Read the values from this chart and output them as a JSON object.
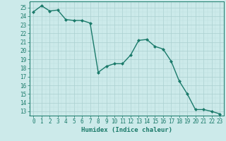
{
  "x": [
    0,
    1,
    2,
    3,
    4,
    5,
    6,
    7,
    8,
    9,
    10,
    11,
    12,
    13,
    14,
    15,
    16,
    17,
    18,
    19,
    20,
    21,
    22,
    23
  ],
  "y": [
    24.5,
    25.2,
    24.6,
    24.7,
    23.6,
    23.5,
    23.5,
    23.2,
    17.5,
    18.2,
    18.5,
    18.5,
    19.5,
    21.2,
    21.3,
    20.5,
    20.2,
    18.8,
    16.5,
    15.0,
    13.2,
    13.2,
    13.0,
    12.7
  ],
  "line_color": "#1a7a6a",
  "marker": "D",
  "marker_size": 2.0,
  "linewidth": 1.0,
  "bg_color": "#cceaea",
  "grid_color_major": "#aad0d0",
  "grid_color_minor": "#bcdede",
  "xlabel": "Humidex (Indice chaleur)",
  "ylabel_ticks": [
    13,
    14,
    15,
    16,
    17,
    18,
    19,
    20,
    21,
    22,
    23,
    24,
    25
  ],
  "ylim": [
    12.5,
    25.7
  ],
  "xlim": [
    -0.5,
    23.5
  ],
  "xlabel_fontsize": 6.5,
  "tick_fontsize": 5.5
}
